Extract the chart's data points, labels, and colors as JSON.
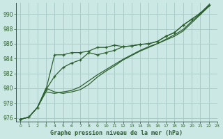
{
  "xlabel": "Graphe pression niveau de la mer (hPa)",
  "bg_color": "#cce8e4",
  "grid_color": "#aaccc8",
  "line_color": "#2d6030",
  "xlim": [
    -0.5,
    23
  ],
  "ylim": [
    975.5,
    991.5
  ],
  "yticks": [
    976,
    978,
    980,
    982,
    984,
    986,
    988,
    990
  ],
  "xticks": [
    0,
    1,
    2,
    3,
    4,
    5,
    6,
    7,
    8,
    9,
    10,
    11,
    12,
    13,
    14,
    15,
    16,
    17,
    18,
    19,
    20,
    21,
    22,
    23
  ],
  "series": [
    {
      "x": [
        0,
        1,
        2,
        3,
        4,
        5,
        6,
        7,
        8,
        9,
        10,
        11,
        12,
        13,
        14,
        15,
        16,
        17,
        18,
        19,
        20,
        21,
        22
      ],
      "y": [
        975.8,
        976.1,
        977.4,
        979.8,
        984.5,
        984.5,
        984.8,
        984.8,
        985.0,
        985.5,
        985.5,
        985.8,
        985.6,
        985.7,
        985.9,
        986.0,
        986.3,
        987.0,
        987.5,
        988.5,
        989.3,
        990.1,
        991.2
      ],
      "marker": true
    },
    {
      "x": [
        0,
        1,
        2,
        3,
        4,
        5,
        6,
        7,
        8,
        9,
        10,
        11,
        12,
        13,
        14,
        15,
        16,
        17,
        18,
        19,
        20,
        21,
        22
      ],
      "y": [
        975.8,
        976.1,
        977.4,
        979.8,
        981.6,
        982.8,
        983.4,
        983.8,
        984.8,
        984.5,
        984.8,
        985.1,
        985.6,
        985.7,
        985.9,
        986.0,
        986.3,
        987.0,
        987.5,
        988.5,
        989.3,
        990.1,
        991.2
      ],
      "marker": true
    },
    {
      "x": [
        0,
        1,
        2,
        3,
        4,
        5,
        6,
        7,
        8,
        9,
        10,
        11,
        12,
        13,
        14,
        15,
        16,
        17,
        18,
        19,
        20,
        21,
        22
      ],
      "y": [
        975.8,
        976.1,
        977.4,
        979.5,
        979.3,
        979.5,
        979.7,
        980.2,
        981.0,
        981.8,
        982.5,
        983.2,
        983.9,
        984.5,
        985.1,
        985.6,
        986.0,
        986.6,
        987.2,
        987.9,
        989.0,
        990.0,
        991.1
      ],
      "marker": false
    },
    {
      "x": [
        0,
        1,
        2,
        3,
        4,
        5,
        6,
        7,
        8,
        9,
        10,
        11,
        12,
        13,
        14,
        15,
        16,
        17,
        18,
        19,
        20,
        21,
        22
      ],
      "y": [
        975.8,
        976.1,
        977.4,
        980.0,
        979.5,
        979.3,
        979.5,
        979.8,
        980.5,
        981.5,
        982.3,
        983.0,
        983.8,
        984.4,
        985.0,
        985.5,
        986.0,
        986.5,
        987.0,
        987.7,
        988.8,
        989.9,
        991.0
      ],
      "marker": false
    }
  ]
}
